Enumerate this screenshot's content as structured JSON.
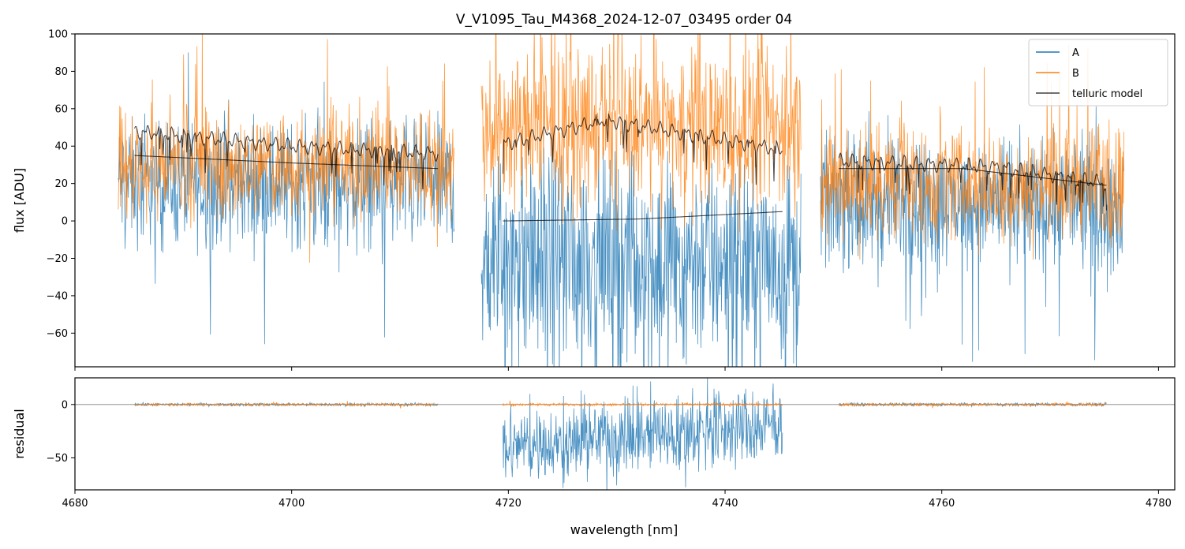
{
  "chart_data": {
    "type": "line",
    "title": "V_V1095_Tau_M4368_2024-12-07_03495  order 04",
    "colors": {
      "A": "#1f77b4",
      "B": "#ff7f0e",
      "telluric": "#000000"
    },
    "segments": [
      {
        "xmin": 4684.0,
        "xmax": 4715.0,
        "fit_range": [
          4685.5,
          4713.5
        ]
      },
      {
        "xmin": 4717.5,
        "xmax": 4747.0,
        "fit_range": [
          4719.5,
          4745.3
        ]
      },
      {
        "xmin": 4748.8,
        "xmax": 4776.8,
        "fit_range": [
          4750.5,
          4775.2
        ]
      }
    ],
    "panels": [
      {
        "name": "flux",
        "ylabel": "flux [ADU]",
        "xlim": [
          4680,
          4781.5
        ],
        "ylim": [
          -78,
          100
        ],
        "yticks": [
          -60,
          -40,
          -20,
          0,
          20,
          40,
          60,
          80,
          100
        ],
        "yticklabels": [
          "−60",
          "−40",
          "−20",
          "0",
          "20",
          "40",
          "60",
          "80",
          "100"
        ],
        "legend": {
          "location": "upper right",
          "entries": [
            {
              "label": "A",
              "color": "#1f77b4"
            },
            {
              "label": "B",
              "color": "#ff7f0e"
            },
            {
              "label": "telluric model",
              "color": "#000000"
            }
          ]
        },
        "series": [
          {
            "name": "A",
            "segment_levels": [
              20,
              -20,
              10
            ],
            "segment_spread": [
              45,
              75,
              45
            ]
          },
          {
            "name": "B",
            "segment_levels": [
              30,
              50,
              20
            ],
            "segment_spread": [
              40,
              55,
              40
            ]
          },
          {
            "name": "telluric model A",
            "points": [
              [
                4685.5,
                35
              ],
              [
                4700,
                31
              ],
              [
                4713.5,
                28
              ],
              [
                4719.5,
                0
              ],
              [
                4732,
                1
              ],
              [
                4745.3,
                5
              ],
              [
                4750.5,
                28
              ],
              [
                4762,
                28
              ],
              [
                4775.2,
                19
              ]
            ]
          },
          {
            "name": "telluric model B",
            "points": [
              [
                4685.5,
                48
              ],
              [
                4700,
                40
              ],
              [
                4713.5,
                36
              ],
              [
                4719.5,
                41
              ],
              [
                4729,
                54
              ],
              [
                4745.3,
                38
              ],
              [
                4750.5,
                32
              ],
              [
                4765,
                29
              ],
              [
                4775.2,
                20
              ]
            ]
          }
        ]
      },
      {
        "name": "residual",
        "ylabel": "residual",
        "xlabel": "wavelength [nm]",
        "xlim": [
          4680,
          4781.5
        ],
        "ylim": [
          -80,
          25
        ],
        "xticks": [
          4680,
          4700,
          4720,
          4740,
          4760,
          4780
        ],
        "xticklabels": [
          "4680",
          "4700",
          "4720",
          "4740",
          "4760",
          "4780"
        ],
        "yticks": [
          -50,
          0
        ],
        "yticklabels": [
          "−50",
          "0"
        ],
        "series": [
          {
            "name": "A residual",
            "note": "near 0 in first and last segments; middle segment spreads from ~25 down to ~-80"
          },
          {
            "name": "B residual",
            "note": "near 0 in all three fit ranges"
          }
        ]
      }
    ]
  }
}
